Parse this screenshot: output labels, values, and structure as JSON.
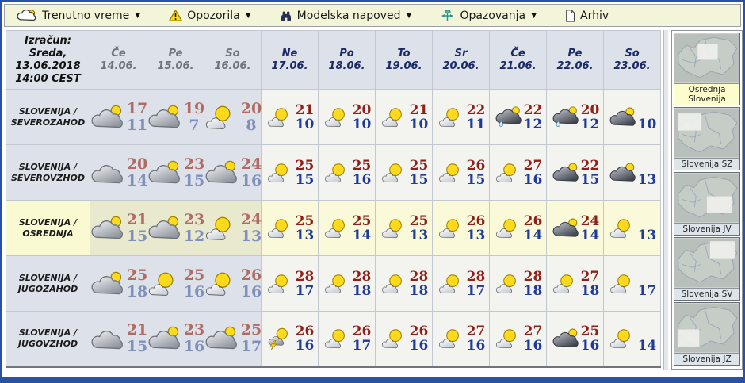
{
  "nav": {
    "items": [
      {
        "icon": "cloud-sun-icon",
        "label": "Trenutno vreme",
        "has_dropdown": true
      },
      {
        "icon": "warning-icon",
        "label": "Opozorila",
        "has_dropdown": true
      },
      {
        "icon": "binoculars-icon",
        "label": "Modelska napoved",
        "has_dropdown": true
      },
      {
        "icon": "weathervane-icon",
        "label": "Opazovanja",
        "has_dropdown": true
      },
      {
        "icon": "document-icon",
        "label": "Arhiv",
        "has_dropdown": false
      }
    ]
  },
  "table": {
    "calc_lines": [
      "Izračun:",
      "Sreda,",
      "13.06.2018",
      "14:00 CEST"
    ],
    "days": [
      {
        "dow": "Če",
        "date": "14.06.",
        "past": true
      },
      {
        "dow": "Pe",
        "date": "15.06.",
        "past": true
      },
      {
        "dow": "So",
        "date": "16.06.",
        "past": true
      },
      {
        "dow": "Ne",
        "date": "17.06.",
        "past": false
      },
      {
        "dow": "Po",
        "date": "18.06.",
        "past": false
      },
      {
        "dow": "To",
        "date": "19.06.",
        "past": false
      },
      {
        "dow": "Sr",
        "date": "20.06.",
        "past": false
      },
      {
        "dow": "Če",
        "date": "21.06.",
        "past": false
      },
      {
        "dow": "Pe",
        "date": "22.06.",
        "past": false
      },
      {
        "dow": "So",
        "date": "23.06.",
        "past": false
      }
    ],
    "rows": [
      {
        "region_lines": [
          "SLOVENIJA /",
          "SEVEROZAHOD"
        ],
        "highlight": false,
        "cells": [
          {
            "icon": "cloud-sun",
            "hi": "17",
            "lo": "11"
          },
          {
            "icon": "cloud-sun",
            "hi": "19",
            "lo": "7"
          },
          {
            "icon": "sun-cloud",
            "hi": "20",
            "lo": "8"
          },
          {
            "icon": "sun-cloud",
            "hi": "21",
            "lo": "10"
          },
          {
            "icon": "sun-cloud",
            "hi": "20",
            "lo": "10"
          },
          {
            "icon": "sun-cloud",
            "hi": "21",
            "lo": "10"
          },
          {
            "icon": "sun-cloud",
            "hi": "22",
            "lo": "11"
          },
          {
            "icon": "rain-sun",
            "hi": "22",
            "lo": "12"
          },
          {
            "icon": "rain-sun",
            "hi": "20",
            "lo": "12"
          },
          {
            "icon": "dark-cloud-sun",
            "hi": "",
            "lo": "10"
          }
        ]
      },
      {
        "region_lines": [
          "SLOVENIJA /",
          "SEVEROVZHOD"
        ],
        "highlight": false,
        "cells": [
          {
            "icon": "cloud",
            "hi": "20",
            "lo": "14"
          },
          {
            "icon": "cloud-sun",
            "hi": "23",
            "lo": "15"
          },
          {
            "icon": "cloud-sun",
            "hi": "24",
            "lo": "16"
          },
          {
            "icon": "sun-cloud",
            "hi": "25",
            "lo": "15"
          },
          {
            "icon": "sun-cloud",
            "hi": "25",
            "lo": "16"
          },
          {
            "icon": "sun-cloud",
            "hi": "25",
            "lo": "15"
          },
          {
            "icon": "sun-cloud",
            "hi": "26",
            "lo": "15"
          },
          {
            "icon": "sun-cloud",
            "hi": "27",
            "lo": "16"
          },
          {
            "icon": "dark-cloud-sun",
            "hi": "22",
            "lo": "15"
          },
          {
            "icon": "dark-cloud-sun",
            "hi": "",
            "lo": "13"
          }
        ]
      },
      {
        "region_lines": [
          "SLOVENIJA /",
          "OSREDNJA"
        ],
        "highlight": true,
        "cells": [
          {
            "icon": "cloud-sun",
            "hi": "21",
            "lo": "15"
          },
          {
            "icon": "cloud-sun",
            "hi": "23",
            "lo": "12"
          },
          {
            "icon": "sun-cloud",
            "hi": "24",
            "lo": "13"
          },
          {
            "icon": "sun-cloud",
            "hi": "25",
            "lo": "13"
          },
          {
            "icon": "sun-cloud",
            "hi": "25",
            "lo": "14"
          },
          {
            "icon": "sun-cloud",
            "hi": "25",
            "lo": "13"
          },
          {
            "icon": "sun-cloud",
            "hi": "26",
            "lo": "13"
          },
          {
            "icon": "sun-cloud",
            "hi": "26",
            "lo": "14"
          },
          {
            "icon": "dark-cloud-sun",
            "hi": "24",
            "lo": "14"
          },
          {
            "icon": "sun-cloud",
            "hi": "",
            "lo": "13"
          }
        ]
      },
      {
        "region_lines": [
          "SLOVENIJA /",
          "JUGOZAHOD"
        ],
        "highlight": false,
        "cells": [
          {
            "icon": "cloud-sun",
            "hi": "25",
            "lo": "18"
          },
          {
            "icon": "sun-cloud",
            "hi": "25",
            "lo": "16"
          },
          {
            "icon": "sun-cloud",
            "hi": "26",
            "lo": "16"
          },
          {
            "icon": "sun-cloud",
            "hi": "28",
            "lo": "17"
          },
          {
            "icon": "sun-cloud",
            "hi": "28",
            "lo": "18"
          },
          {
            "icon": "sun-cloud",
            "hi": "28",
            "lo": "18"
          },
          {
            "icon": "sun-cloud",
            "hi": "28",
            "lo": "17"
          },
          {
            "icon": "sun-cloud",
            "hi": "28",
            "lo": "18"
          },
          {
            "icon": "sun-cloud",
            "hi": "27",
            "lo": "18"
          },
          {
            "icon": "sun-cloud",
            "hi": "",
            "lo": "17"
          }
        ]
      },
      {
        "region_lines": [
          "SLOVENIJA /",
          "JUGOVZHOD"
        ],
        "highlight": false,
        "cells": [
          {
            "icon": "cloud",
            "hi": "21",
            "lo": "15"
          },
          {
            "icon": "cloud-sun",
            "hi": "23",
            "lo": "16"
          },
          {
            "icon": "cloud-sun",
            "hi": "25",
            "lo": "17"
          },
          {
            "icon": "storm-sun",
            "hi": "26",
            "lo": "16"
          },
          {
            "icon": "sun-cloud",
            "hi": "26",
            "lo": "17"
          },
          {
            "icon": "sun-cloud",
            "hi": "26",
            "lo": "16"
          },
          {
            "icon": "sun-cloud",
            "hi": "27",
            "lo": "16"
          },
          {
            "icon": "sun-cloud",
            "hi": "27",
            "lo": "16"
          },
          {
            "icon": "dark-cloud-sun",
            "hi": "25",
            "lo": "16"
          },
          {
            "icon": "sun-cloud",
            "hi": "",
            "lo": "14"
          }
        ]
      }
    ]
  },
  "sidebar": {
    "maps": [
      {
        "label": "Osrednja Slovenija",
        "selected": true,
        "patch": "center"
      },
      {
        "label": "Slovenija SZ",
        "selected": false,
        "patch": "nw"
      },
      {
        "label": "Slovenija JV",
        "selected": false,
        "patch": "se"
      },
      {
        "label": "Slovenija SV",
        "selected": false,
        "patch": "ne"
      },
      {
        "label": "Slovenija JZ",
        "selected": false,
        "patch": "sw"
      }
    ]
  },
  "colors": {
    "page_border": "#2b51a5",
    "nav_bg": "#f3f5d9",
    "past_col_bg": "#dde1e9",
    "future_col_bg": "#f3f4ef",
    "highlight_row_bg": "#fafada",
    "selected_map_bg": "#fcfccd",
    "hi_temp": "#8f1f1a",
    "lo_temp": "#1f3a99",
    "hi_temp_past": "#b06b63",
    "lo_temp_past": "#8090bd"
  }
}
